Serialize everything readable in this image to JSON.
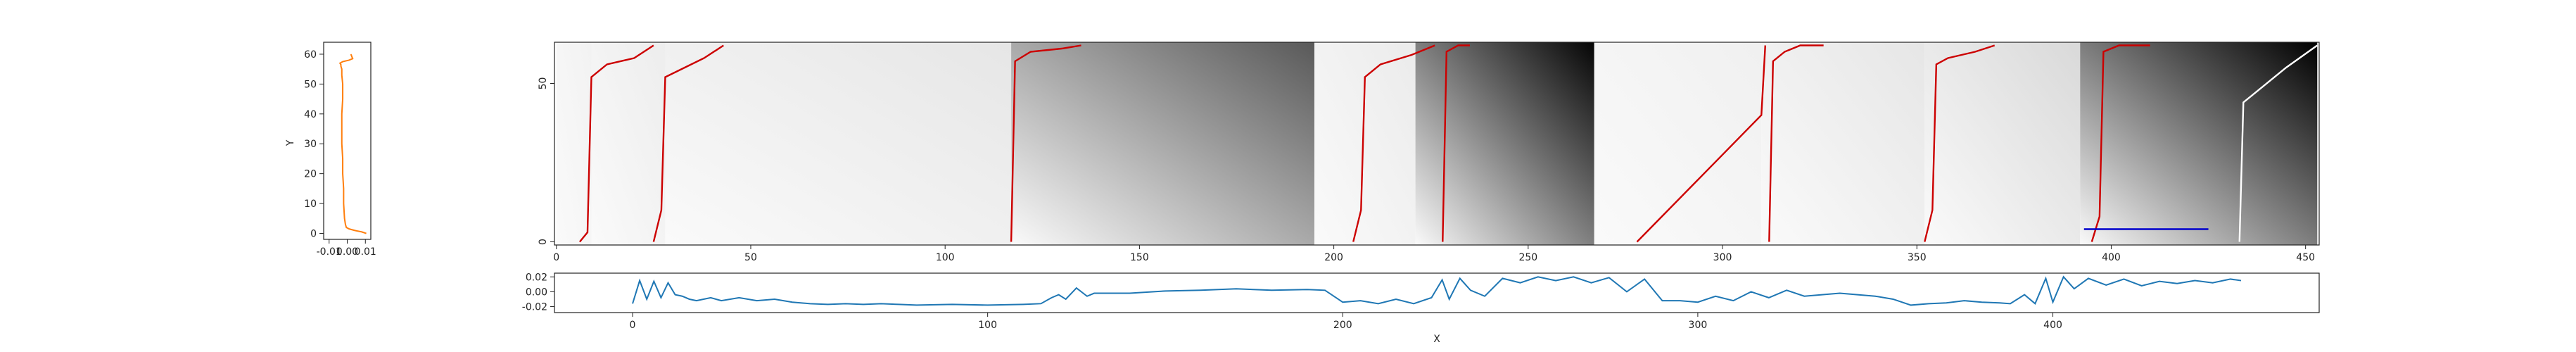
{
  "chart_data": [
    {
      "id": "left",
      "type": "line",
      "ylabel": "Y",
      "xticks": [
        "-0.01",
        "0.00",
        "0.01"
      ],
      "yticks": [
        0,
        10,
        20,
        30,
        40,
        50,
        60
      ],
      "xlim": [
        -0.013,
        0.013
      ],
      "ylim": [
        -2,
        64
      ],
      "series_color": "#ff7f0e",
      "x": [
        0.0105,
        0.008,
        0.004,
        0.001,
        -0.0005,
        -0.001,
        -0.0015,
        -0.002,
        -0.002,
        -0.0025,
        -0.0025,
        -0.003,
        -0.003,
        -0.003,
        -0.0025,
        -0.0025,
        -0.003,
        -0.003,
        -0.0035,
        -0.0035,
        -0.004,
        -0.0025,
        0.001,
        0.003,
        0.002
      ],
      "y": [
        0,
        0.5,
        1,
        1.5,
        2,
        3,
        5,
        10,
        15,
        20,
        25,
        30,
        35,
        40,
        45,
        50,
        53,
        55,
        56,
        56.5,
        57,
        57.5,
        58,
        58.5,
        60
      ]
    },
    {
      "id": "heatmap",
      "type": "heatmap",
      "xticks": [
        0,
        50,
        100,
        150,
        200,
        250,
        300,
        350,
        400,
        450
      ],
      "yticks": [
        0,
        50
      ],
      "xlim": [
        -0.5,
        453.5
      ],
      "ylim": [
        -1,
        63
      ],
      "segments": [
        {
          "x0": 0,
          "x1": 9,
          "shade": 0.95
        },
        {
          "x0": 9,
          "x1": 28,
          "shade": 0.93
        },
        {
          "x0": 28,
          "x1": 117,
          "shade": 0.9
        },
        {
          "x0": 117,
          "x1": 195,
          "shade": 0.35
        },
        {
          "x0": 195,
          "x1": 221,
          "shade": 0.92
        },
        {
          "x0": 221,
          "x1": 267,
          "shade": 0.02
        },
        {
          "x0": 267,
          "x1": 310,
          "shade": 0.94
        },
        {
          "x0": 310,
          "x1": 352,
          "shade": 0.9
        },
        {
          "x0": 352,
          "x1": 392,
          "shade": 0.85
        },
        {
          "x0": 392,
          "x1": 453,
          "shade": 0.0
        }
      ],
      "red_paths": [
        [
          [
            6,
            0
          ],
          [
            8,
            3
          ],
          [
            9,
            52
          ],
          [
            13,
            56
          ],
          [
            20,
            58
          ],
          [
            25,
            62
          ]
        ],
        [
          [
            25,
            0
          ],
          [
            27,
            10
          ],
          [
            28,
            52
          ],
          [
            33,
            55
          ],
          [
            38,
            58
          ],
          [
            43,
            62
          ]
        ],
        [
          [
            117,
            0
          ],
          [
            118,
            57
          ],
          [
            122,
            60
          ],
          [
            130,
            61
          ],
          [
            135,
            62
          ]
        ],
        [
          [
            205,
            0
          ],
          [
            207,
            10
          ],
          [
            208,
            52
          ],
          [
            212,
            56
          ],
          [
            220,
            59
          ],
          [
            226,
            62
          ]
        ],
        [
          [
            228,
            0
          ],
          [
            229,
            60
          ],
          [
            232,
            62
          ],
          [
            235,
            62
          ]
        ],
        [
          [
            278,
            0
          ],
          [
            290,
            15
          ],
          [
            310,
            40
          ],
          [
            311,
            62
          ]
        ],
        [
          [
            312,
            0
          ],
          [
            313,
            57
          ],
          [
            316,
            60
          ],
          [
            320,
            62
          ],
          [
            326,
            62
          ]
        ],
        [
          [
            352,
            0
          ],
          [
            354,
            10
          ],
          [
            355,
            56
          ],
          [
            358,
            58
          ],
          [
            365,
            60
          ],
          [
            370,
            62
          ]
        ],
        [
          [
            395,
            0
          ],
          [
            397,
            8
          ],
          [
            398,
            60
          ],
          [
            402,
            62
          ],
          [
            410,
            62
          ]
        ]
      ],
      "red_color": "#cc0000",
      "white_path": [
        [
          433,
          0
        ],
        [
          434,
          44
        ],
        [
          445,
          55
        ],
        [
          453,
          62
        ]
      ],
      "white_color": "#ffffff",
      "blue_path": [
        [
          393,
          4
        ],
        [
          425,
          4
        ]
      ],
      "blue_color": "#0000cc"
    },
    {
      "id": "bottom",
      "type": "line",
      "xlabel": "X",
      "xticks": [
        0,
        100,
        200,
        300,
        400
      ],
      "yticks": [
        "0.02",
        "0.00",
        "-0.02"
      ],
      "ytick_values": [
        0.02,
        0.0,
        -0.02
      ],
      "xlim": [
        -22,
        475
      ],
      "ylim": [
        -0.028,
        0.025
      ],
      "series_color": "#1f77b4",
      "x": [
        0,
        2,
        4,
        6,
        8,
        10,
        12,
        14,
        16,
        18,
        20,
        22,
        25,
        30,
        35,
        40,
        45,
        50,
        55,
        60,
        65,
        70,
        75,
        80,
        90,
        100,
        110,
        115,
        118,
        120,
        122,
        125,
        128,
        130,
        140,
        150,
        160,
        170,
        180,
        190,
        195,
        200,
        205,
        210,
        215,
        220,
        225,
        228,
        230,
        233,
        236,
        240,
        245,
        250,
        255,
        260,
        265,
        270,
        275,
        280,
        285,
        290,
        295,
        300,
        305,
        310,
        315,
        320,
        325,
        330,
        340,
        350,
        355,
        360,
        365,
        370,
        375,
        380,
        385,
        388,
        392,
        395,
        398,
        400,
        403,
        406,
        410,
        415,
        420,
        425,
        430,
        435,
        440,
        445,
        450,
        453
      ],
      "y": [
        -0.016,
        0.015,
        -0.01,
        0.014,
        -0.008,
        0.012,
        -0.004,
        -0.006,
        -0.01,
        -0.012,
        -0.01,
        -0.008,
        -0.012,
        -0.008,
        -0.012,
        -0.01,
        -0.014,
        -0.016,
        -0.017,
        -0.016,
        -0.017,
        -0.016,
        -0.017,
        -0.018,
        -0.017,
        -0.018,
        -0.017,
        -0.016,
        -0.008,
        -0.004,
        -0.01,
        0.005,
        -0.006,
        -0.002,
        -0.002,
        0.001,
        0.002,
        0.004,
        0.002,
        0.003,
        0.002,
        -0.014,
        -0.012,
        -0.016,
        -0.01,
        -0.016,
        -0.008,
        0.016,
        -0.01,
        0.018,
        0.002,
        -0.006,
        0.018,
        0.012,
        0.02,
        0.015,
        0.02,
        0.012,
        0.019,
        0.0,
        0.017,
        -0.012,
        -0.012,
        -0.014,
        -0.006,
        -0.012,
        0.0,
        -0.008,
        0.002,
        -0.006,
        -0.002,
        -0.006,
        -0.01,
        -0.018,
        -0.016,
        -0.015,
        -0.012,
        -0.014,
        -0.015,
        -0.016,
        -0.004,
        -0.016,
        0.018,
        -0.014,
        0.02,
        0.004,
        0.018,
        0.009,
        0.017,
        0.008,
        0.014,
        0.011,
        0.015,
        0.012,
        0.017,
        0.015
      ]
    }
  ]
}
